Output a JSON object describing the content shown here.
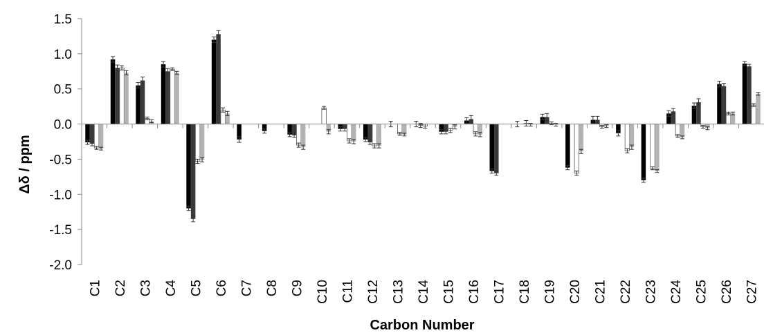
{
  "chart_data": {
    "type": "bar",
    "title": "",
    "xlabel": "Carbon Number",
    "ylabel": "Δδ / ppm",
    "ylim": [
      -2.0,
      1.5
    ],
    "yticks": [
      "1.5",
      "1.0",
      "0.5",
      "0.0",
      "-0.5",
      "-1.0",
      "-1.5",
      "-2.0"
    ],
    "ytick_values": [
      1.5,
      1.0,
      0.5,
      0.0,
      -0.5,
      -1.0,
      -1.5,
      -2.0
    ],
    "grid": false,
    "legend": "none",
    "error_bars": true,
    "categories": [
      "C1",
      "C2",
      "C3",
      "C4",
      "C5",
      "C6",
      "C7",
      "C8",
      "C9",
      "C10",
      "C11",
      "C12",
      "C13",
      "C14",
      "C15",
      "C16",
      "C17",
      "C18",
      "C19",
      "C20",
      "C21",
      "C22",
      "C23",
      "C24",
      "C25",
      "C26",
      "C27"
    ],
    "series": [
      {
        "color": "#000000",
        "values": [
          -0.26,
          0.92,
          0.55,
          0.85,
          -1.2,
          1.2,
          -0.22,
          -0.1,
          -0.15,
          0,
          -0.07,
          -0.22,
          0,
          0,
          -0.11,
          0.05,
          -0.67,
          0,
          0.1,
          -0.62,
          0.06,
          -0.13,
          -0.8,
          0.15,
          0.26,
          0.57,
          0.86
        ],
        "errors": [
          0.03,
          0.04,
          0.04,
          0.04,
          0.03,
          0.04,
          0.04,
          0.03,
          0.03,
          0,
          0.03,
          0.03,
          0.04,
          0.04,
          0.03,
          0.04,
          0.03,
          0.04,
          0.04,
          0.03,
          0.05,
          0.04,
          0.03,
          0.04,
          0.04,
          0.04,
          0.03
        ]
      },
      {
        "color": "#3a3a3a",
        "values": [
          -0.28,
          0.8,
          0.62,
          0.75,
          -1.35,
          1.28,
          0,
          0,
          -0.16,
          0,
          -0.07,
          -0.26,
          0,
          -0.02,
          -0.11,
          0.07,
          -0.7,
          0,
          0.1,
          0,
          0.06,
          0,
          0,
          0.18,
          0.31,
          0.54,
          0.82
        ],
        "errors": [
          0.03,
          0.04,
          0.05,
          0.04,
          0.04,
          0.05,
          0,
          0,
          0.03,
          0,
          0.03,
          0.03,
          0,
          0.03,
          0.03,
          0.05,
          0.03,
          0,
          0.05,
          0,
          0.05,
          0,
          0,
          0.04,
          0.05,
          0.04,
          0.03
        ]
      },
      {
        "color": "#ffffff",
        "values": [
          -0.34,
          0.8,
          0.08,
          0.78,
          -0.53,
          0.2,
          0,
          0,
          -0.3,
          0.23,
          -0.24,
          -0.31,
          -0.14,
          -0.03,
          -0.09,
          -0.14,
          0,
          0.01,
          0.01,
          -0.7,
          -0.04,
          -0.38,
          -0.63,
          -0.17,
          -0.04,
          0.15,
          0.27
        ],
        "errors": [
          0.02,
          0.03,
          0.02,
          0.02,
          0.03,
          0.03,
          0,
          0,
          0.03,
          0.02,
          0.03,
          0.03,
          0.02,
          0.03,
          0.03,
          0.03,
          0,
          0.04,
          0.02,
          0.03,
          0.02,
          0.03,
          0.02,
          0.02,
          0.02,
          0.02,
          0.02
        ]
      },
      {
        "color": "#b3b3b3",
        "values": [
          -0.35,
          0.73,
          0.04,
          0.73,
          -0.51,
          0.15,
          0,
          0,
          -0.33,
          -0.11,
          -0.25,
          -0.31,
          -0.15,
          0,
          -0.04,
          -0.15,
          0,
          -0.01,
          -0.01,
          -0.39,
          -0.03,
          -0.33,
          -0.67,
          -0.19,
          -0.06,
          0.15,
          0.43
        ],
        "errors": [
          0.02,
          0.03,
          0.02,
          0.02,
          0.03,
          0.03,
          0,
          0,
          0.03,
          0.03,
          0.03,
          0.03,
          0.02,
          0,
          0.03,
          0.03,
          0,
          0.02,
          0.02,
          0.03,
          0.02,
          0.03,
          0.02,
          0.02,
          0.02,
          0.02,
          0.02
        ]
      }
    ]
  }
}
